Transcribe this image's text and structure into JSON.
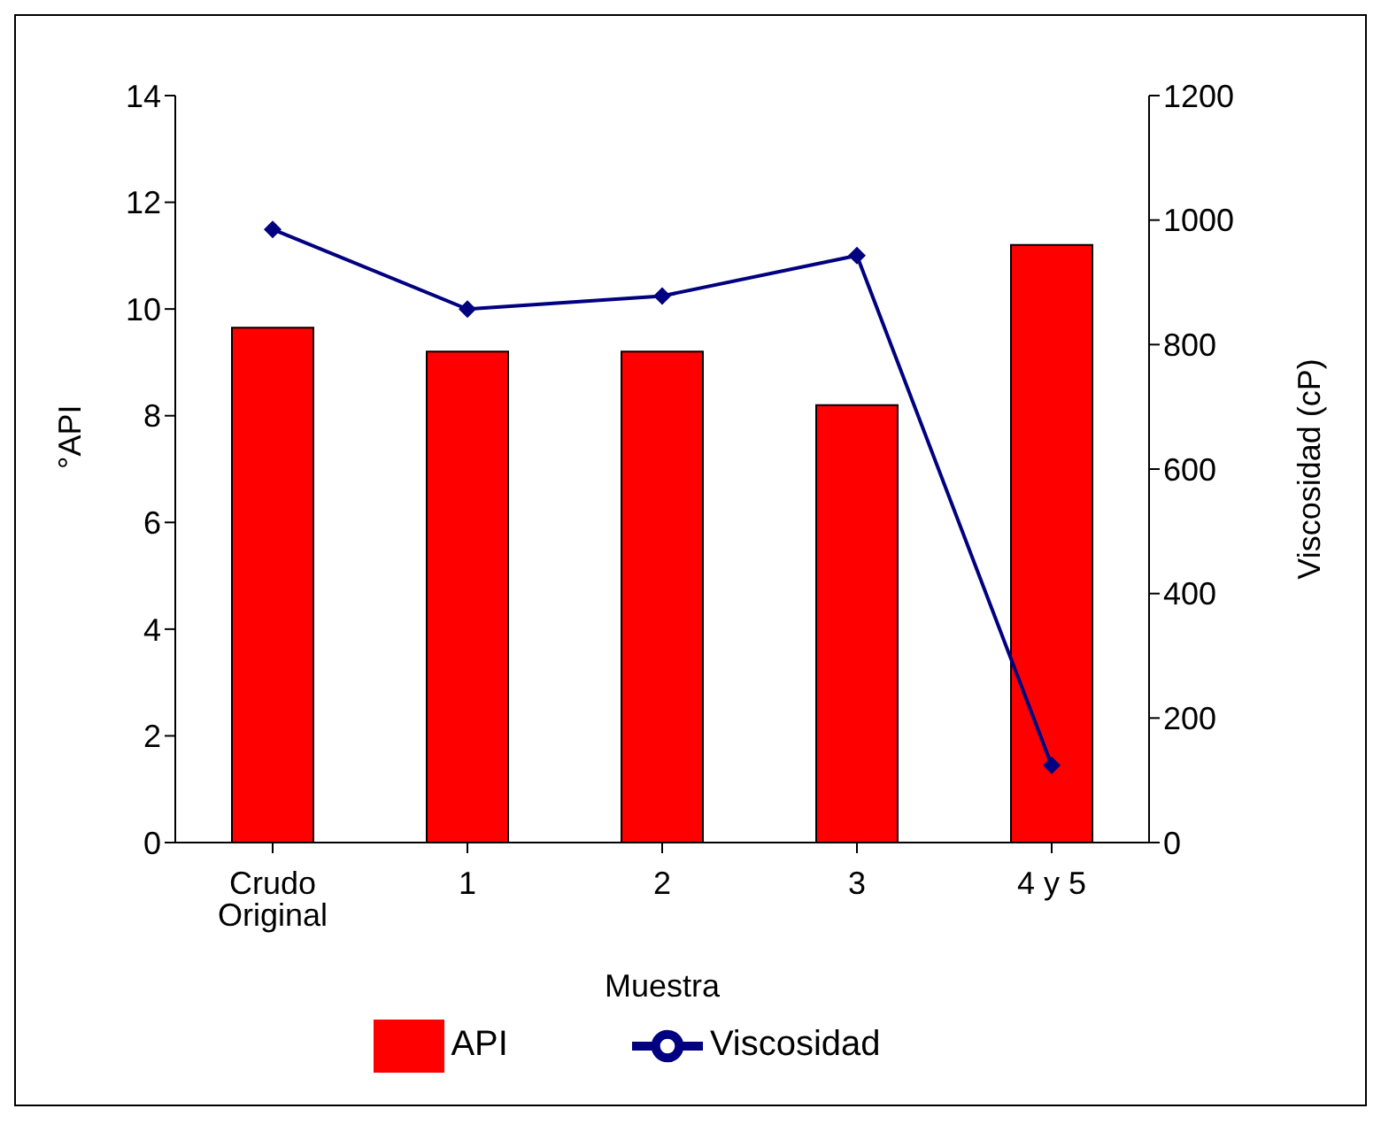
{
  "chart_data": {
    "type": "bar",
    "xlabel": "Muestra",
    "ylabel": "°API",
    "y2label": "Viscosidad (cP)",
    "categories": [
      "Crudo Original",
      "1",
      "2",
      "3",
      "4 y 5"
    ],
    "series": [
      {
        "name": "API",
        "color": "#ff0000",
        "values": [
          9.65,
          9.2,
          9.2,
          8.2,
          11.2
        ]
      },
      {
        "name": "Viscosidad",
        "type": "line",
        "axis": "y2",
        "color": "#000080",
        "marker": "diamond",
        "values": [
          985,
          857,
          878,
          943,
          124
        ]
      }
    ],
    "ylim": [
      0,
      14
    ],
    "yticks": [
      0,
      2,
      4,
      6,
      8,
      10,
      12,
      14
    ],
    "y2lim": [
      0,
      1200
    ],
    "y2ticks": [
      0,
      200,
      400,
      600,
      800,
      1000,
      1200
    ],
    "grid": false,
    "legend": "bottom"
  }
}
